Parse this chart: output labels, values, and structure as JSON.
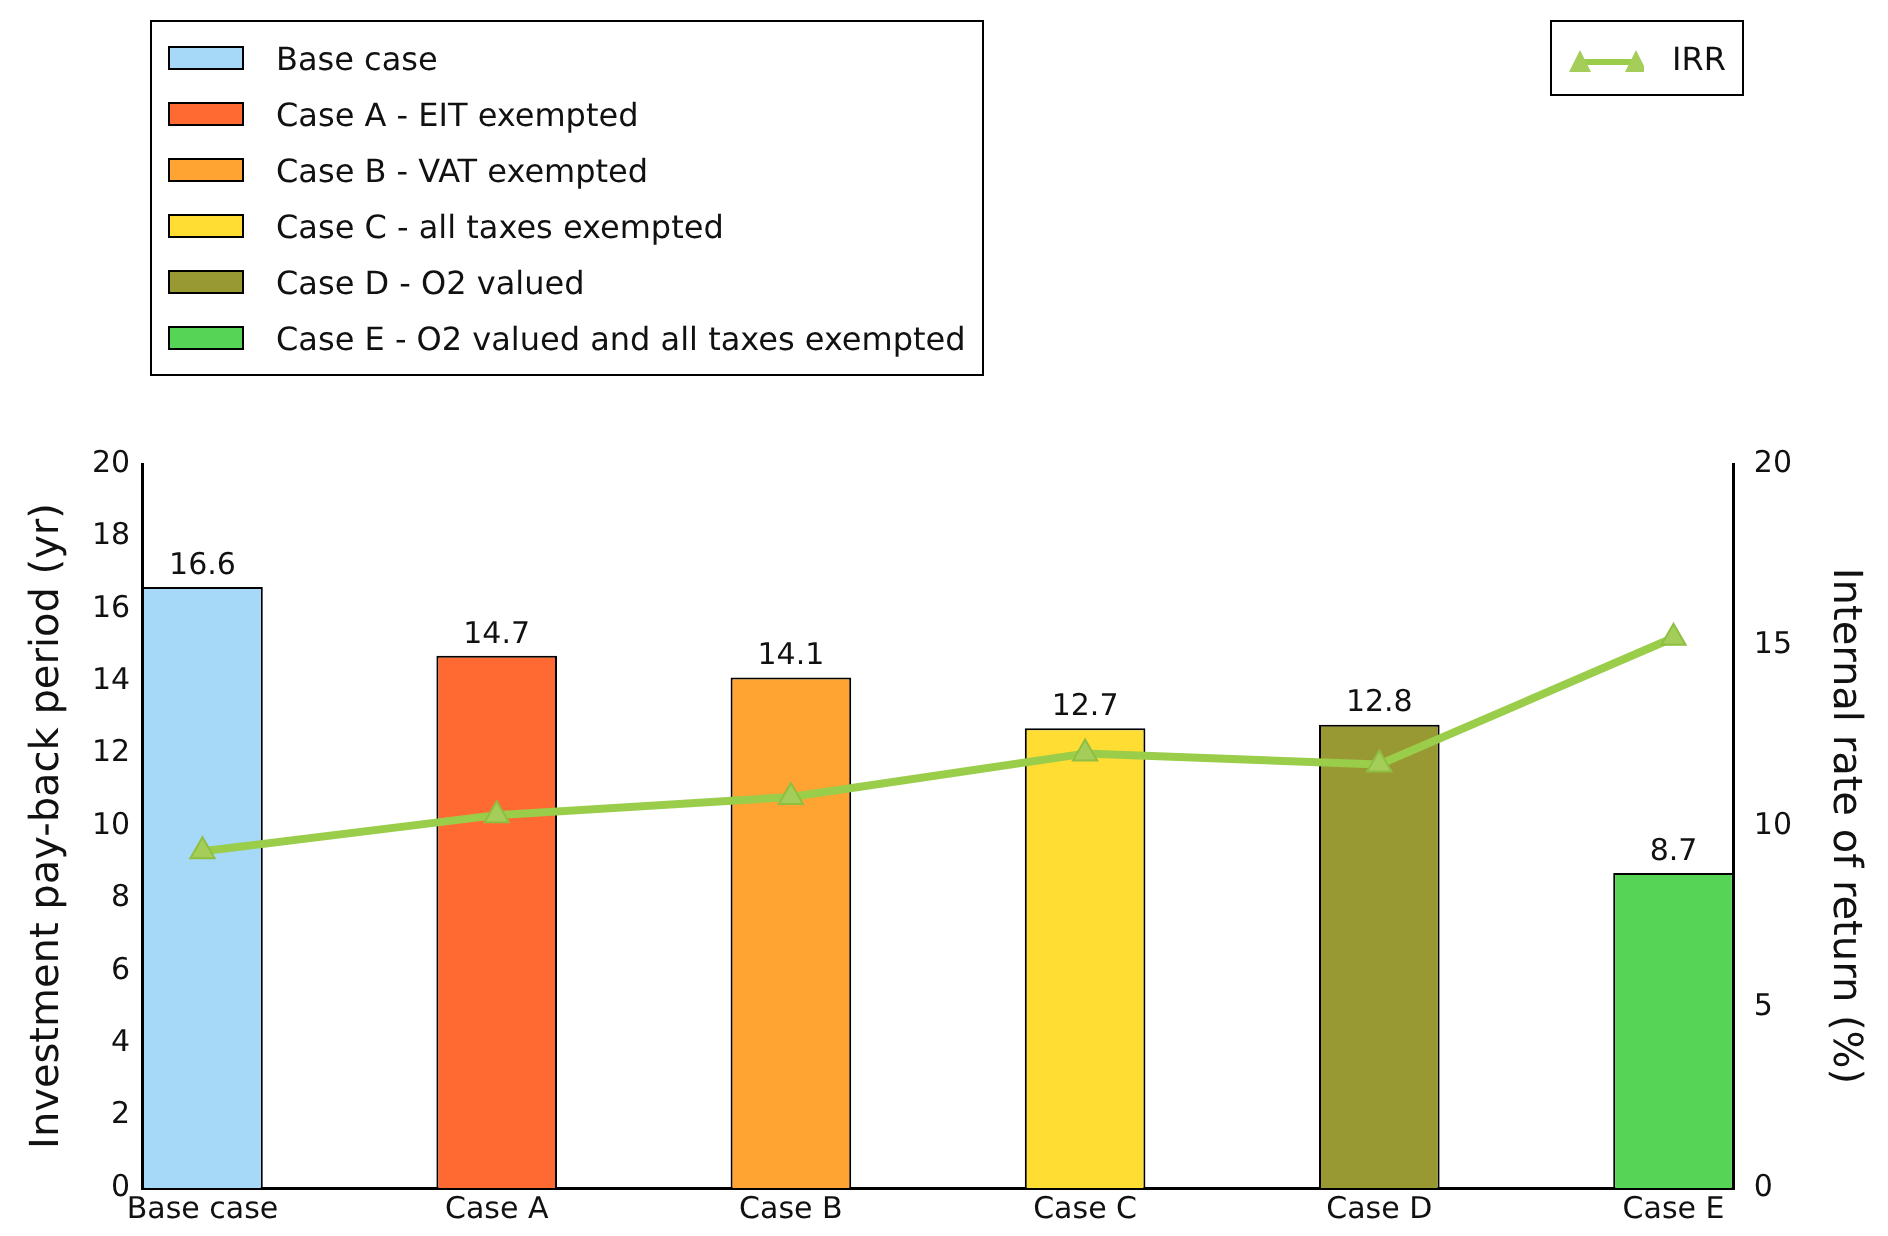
{
  "chart_data": {
    "type": "bar",
    "ylabel": "Investment pay-back period (yr)",
    "y2label": "Internal rate of return (%)",
    "categories": [
      "Base case",
      "Case A",
      "Case B",
      "Case C",
      "Case D",
      "Case E"
    ],
    "series": [
      {
        "name": "Base case",
        "color": "#a6d8f7",
        "values": [
          16.6,
          null,
          null,
          null,
          null,
          null
        ],
        "value_labels": [
          "16.6",
          null,
          null,
          null,
          null,
          null
        ]
      },
      {
        "name": "Case A - EIT exempted",
        "color": "#ff6a33",
        "values": [
          null,
          14.7,
          null,
          null,
          null,
          null
        ],
        "value_labels": [
          null,
          "14.7",
          null,
          null,
          null,
          null
        ]
      },
      {
        "name": "Case B - VAT exempted",
        "color": "#ffa333",
        "values": [
          null,
          null,
          14.1,
          null,
          null,
          null
        ],
        "value_labels": [
          null,
          null,
          "14.1",
          null,
          null,
          null
        ]
      },
      {
        "name": "Case C - all taxes exempted",
        "color": "#ffdd33",
        "values": [
          null,
          null,
          null,
          12.7,
          null,
          null
        ],
        "value_labels": [
          null,
          null,
          null,
          "12.7",
          null,
          null
        ]
      },
      {
        "name": "Case D - O2 valued",
        "color": "#999933",
        "values": [
          null,
          null,
          null,
          null,
          12.8,
          null
        ],
        "value_labels": [
          null,
          null,
          null,
          null,
          "12.8",
          null
        ]
      },
      {
        "name": "Case E - O2 valued and all taxes exempted",
        "color": "#55d455",
        "values": [
          null,
          null,
          null,
          null,
          null,
          8.7
        ],
        "value_labels": [
          null,
          null,
          null,
          null,
          null,
          "8.7"
        ]
      },
      {
        "name": "IRR",
        "type": "line",
        "axis": "y2",
        "color": "#9acd4a",
        "marker": "triangle",
        "values": [
          9.3,
          10.3,
          10.8,
          12.0,
          11.7,
          15.2
        ]
      }
    ],
    "ylim": [
      0,
      20
    ],
    "yticks": [
      0,
      2,
      4,
      6,
      8,
      10,
      12,
      14,
      16,
      18,
      20
    ],
    "y2lim": [
      0,
      20
    ],
    "y2ticks": [
      0,
      5,
      10,
      15,
      20
    ],
    "grid": false,
    "legend": "top"
  }
}
